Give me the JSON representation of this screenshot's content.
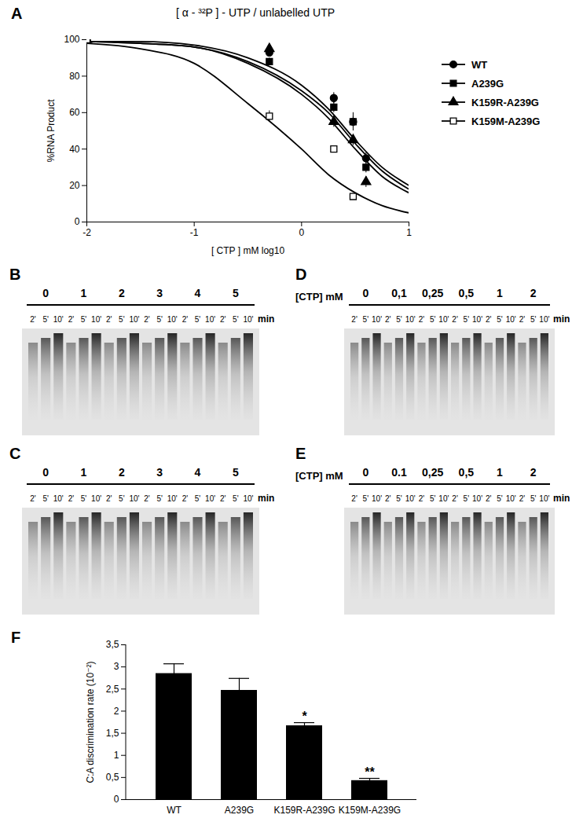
{
  "chart_data": [
    {
      "type": "scatter",
      "panel": "A",
      "title": "[ α - ³²P ] - UTP / unlabelled UTP",
      "x_label": "[ CTP ] mM log10",
      "y_label": "%RNA Product",
      "xlim": [
        -2,
        1
      ],
      "xticks": [
        -2,
        -1,
        0,
        1
      ],
      "ylim": [
        0,
        100
      ],
      "yticks": [
        0,
        20,
        40,
        60,
        80,
        100
      ],
      "legend": "top-right",
      "series": [
        {
          "name": "WT",
          "color": "#000000",
          "marker": "circle",
          "x": [
            -2,
            -0.3,
            0.3,
            0.48,
            0.6
          ],
          "values": [
            100,
            93,
            68,
            55,
            35
          ],
          "errors": [
            0,
            2,
            3,
            3,
            3
          ],
          "fit_x": [
            -2,
            -1.5,
            -1,
            -0.5,
            0,
            0.25,
            0.5,
            0.75,
            1
          ],
          "fit_values": [
            99,
            99,
            97,
            90,
            75,
            62,
            45,
            30,
            20
          ]
        },
        {
          "name": "A239G",
          "color": "#000000",
          "marker": "square",
          "x": [
            -2,
            -0.3,
            0.3,
            0.48,
            0.6
          ],
          "values": [
            100,
            88,
            63,
            55,
            30
          ],
          "errors": [
            0,
            2,
            3,
            5,
            3
          ],
          "fit_x": [
            -2,
            -1.5,
            -1,
            -0.5,
            0,
            0.25,
            0.5,
            0.75,
            1
          ],
          "fit_values": [
            99,
            98,
            96,
            88,
            72,
            60,
            43,
            28,
            18
          ]
        },
        {
          "name": "K159R-A239G",
          "color": "#000000",
          "marker": "triangle",
          "x": [
            -2,
            -0.3,
            0.3,
            0.48,
            0.6
          ],
          "values": [
            100,
            95,
            55,
            45,
            22
          ],
          "errors": [
            0,
            2,
            3,
            3,
            3
          ],
          "fit_x": [
            -2,
            -1.5,
            -1,
            -0.5,
            0,
            0.25,
            0.5,
            0.75,
            1
          ],
          "fit_values": [
            99,
            98,
            96,
            87,
            70,
            57,
            40,
            25,
            16
          ]
        },
        {
          "name": "K159M-A239G",
          "color": "#000000",
          "marker": "open square",
          "x": [
            -2,
            -0.3,
            0.3,
            0.48
          ],
          "values": [
            100,
            58,
            40,
            14
          ],
          "errors": [
            0,
            3,
            1,
            1
          ],
          "fit_x": [
            -2,
            -1.5,
            -1,
            -0.5,
            0,
            0.25,
            0.5,
            0.75,
            1
          ],
          "fit_values": [
            98,
            95,
            87,
            65,
            40,
            26,
            16,
            9,
            5
          ]
        }
      ]
    },
    {
      "type": "bar",
      "panel": "F",
      "y_label": "C:A discrimination rate (10⁻²)",
      "categories": [
        "WT",
        "A239G",
        "K159R-A239G",
        "K159M-A239G"
      ],
      "values": [
        2.85,
        2.47,
        1.67,
        0.43
      ],
      "errors": [
        0.22,
        0.27,
        0.07,
        0.05
      ],
      "significance": [
        null,
        null,
        "*",
        "**"
      ],
      "color": "#000000",
      "ylim": [
        0,
        3.5
      ],
      "yticks": [
        0,
        {
          "value": 0.5,
          "label": "0,5"
        },
        1,
        {
          "value": 1.5,
          "label": "1,5"
        },
        2,
        {
          "value": 2.5,
          "label": "2,5"
        },
        3,
        {
          "value": 3.5,
          "label": "3,5"
        }
      ]
    }
  ],
  "gels": [
    {
      "panel": "B",
      "concentrations": [
        "0",
        "1",
        "2",
        "3",
        "4",
        "5"
      ],
      "times": [
        "2'",
        "5'",
        "10'"
      ],
      "time_unit": "min"
    },
    {
      "panel": "C",
      "concentrations": [
        "0",
        "1",
        "2",
        "3",
        "4",
        "5"
      ],
      "times": [
        "2'",
        "5'",
        "10'"
      ],
      "time_unit": "min"
    },
    {
      "panel": "D",
      "concentration_unit": "[CTP] mM",
      "concentrations": [
        "0",
        "0,1",
        "0,25",
        "0,5",
        "1",
        "2"
      ],
      "times": [
        "2'",
        "5'",
        "10'"
      ],
      "time_unit": "min"
    },
    {
      "panel": "E",
      "concentration_unit": "[CTP] mM",
      "concentrations": [
        "0",
        "0.1",
        "0,25",
        "0,5",
        "1",
        "2"
      ],
      "times": [
        "2'",
        "5'",
        "10'"
      ],
      "time_unit": "min"
    }
  ]
}
